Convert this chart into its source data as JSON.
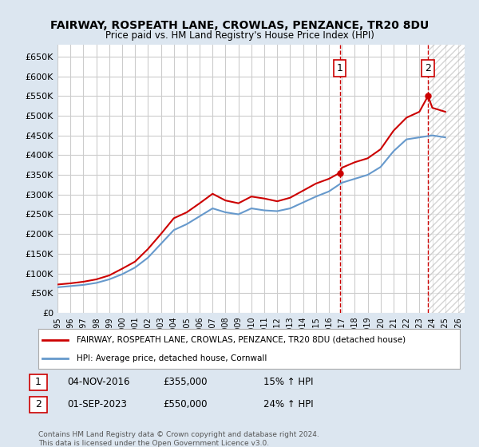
{
  "title": "FAIRWAY, ROSPEATH LANE, CROWLAS, PENZANCE, TR20 8DU",
  "subtitle": "Price paid vs. HM Land Registry's House Price Index (HPI)",
  "ylabel_prefix": "£",
  "ylim": [
    0,
    680000
  ],
  "yticks": [
    0,
    50000,
    100000,
    150000,
    200000,
    250000,
    300000,
    350000,
    400000,
    450000,
    500000,
    550000,
    600000,
    650000
  ],
  "xlim_start": 1995.0,
  "xlim_end": 2026.5,
  "sale1_x": 2016.84,
  "sale1_y": 355000,
  "sale1_label": "1",
  "sale1_date": "04-NOV-2016",
  "sale1_price": "£355,000",
  "sale1_pct": "15% ↑ HPI",
  "sale2_x": 2023.67,
  "sale2_y": 550000,
  "sale2_label": "2",
  "sale2_date": "01-SEP-2023",
  "sale2_price": "£550,000",
  "sale2_pct": "24% ↑ HPI",
  "hpi_line_color": "#6699cc",
  "price_line_color": "#cc0000",
  "dashed_line_color": "#cc0000",
  "marker_color": "#cc0000",
  "legend_text1": "FAIRWAY, ROSPEATH LANE, CROWLAS, PENZANCE, TR20 8DU (detached house)",
  "legend_text2": "HPI: Average price, detached house, Cornwall",
  "footer": "Contains HM Land Registry data © Crown copyright and database right 2024.\nThis data is licensed under the Open Government Licence v3.0.",
  "bg_color": "#dce6f0",
  "plot_bg": "#ffffff",
  "hatch_color": "#cccccc"
}
